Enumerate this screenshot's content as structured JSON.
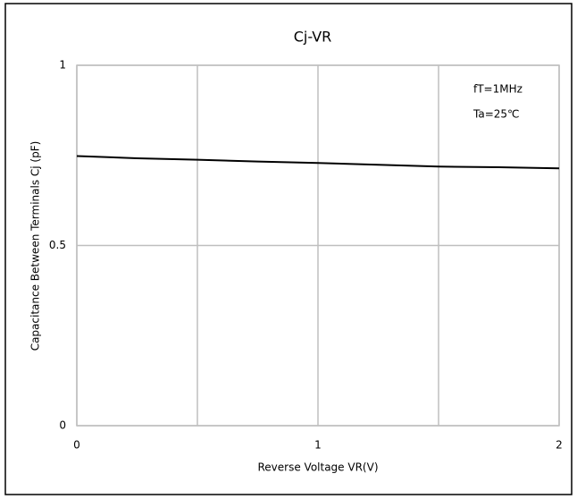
{
  "chart_data": {
    "type": "line",
    "title": "Cj-VR",
    "x_label": "Reverse Voltage  VR(V)",
    "y_label": "Capacitance Between Terminals Cj (pF)",
    "annotations": [
      "fT=1MHz",
      "Ta=25℃"
    ],
    "x": [
      0,
      0.25,
      0.5,
      0.75,
      1,
      1.25,
      1.5,
      1.75,
      2
    ],
    "series": [
      {
        "name": "Cj",
        "color": "#000000",
        "values": [
          0.748,
          0.742,
          0.738,
          0.733,
          0.729,
          0.724,
          0.719,
          0.717,
          0.714
        ]
      }
    ],
    "xlim": [
      0,
      2
    ],
    "xticks": [
      0,
      1,
      2
    ],
    "xminorticks": [
      0.5,
      1.5
    ],
    "ylim": [
      0,
      1
    ],
    "yticks": [
      0,
      0.5,
      1
    ],
    "grid": true
  }
}
